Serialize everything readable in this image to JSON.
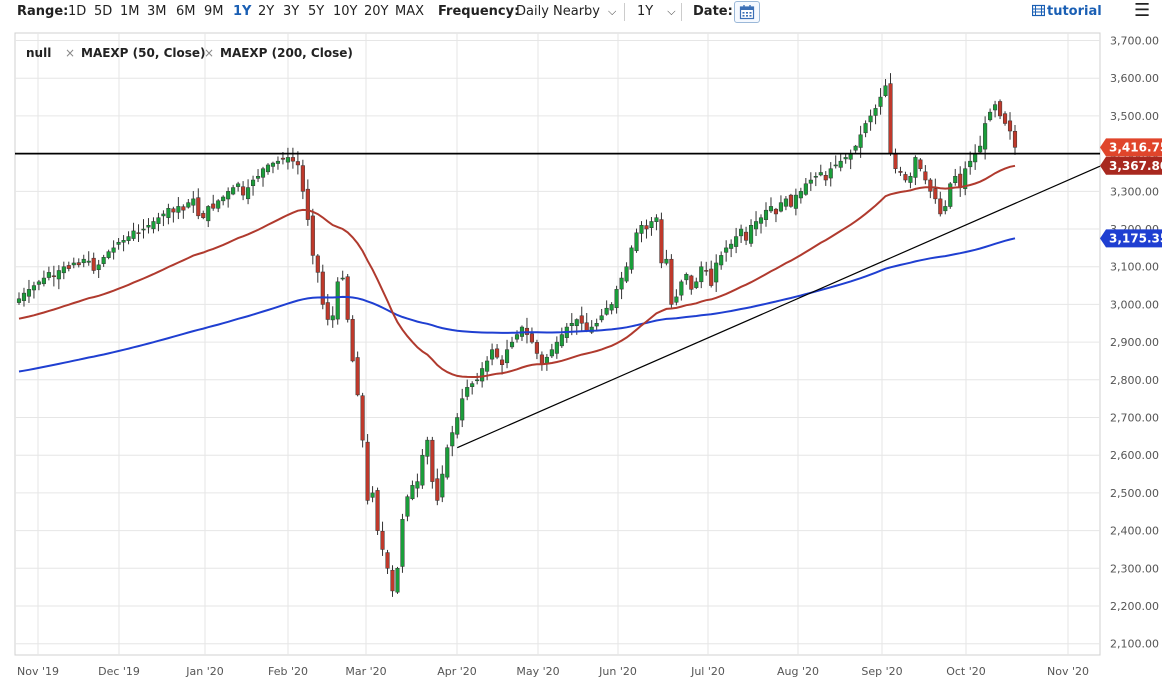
{
  "toolbar": {
    "range_label": "Range:",
    "ranges": [
      "1D",
      "5D",
      "1M",
      "3M",
      "6M",
      "9M",
      "1Y",
      "2Y",
      "3Y",
      "5Y",
      "10Y",
      "20Y",
      "MAX"
    ],
    "active_range": "1Y",
    "frequency_label": "Frequency:",
    "frequency_value": "Daily Nearby",
    "period_value": "1Y",
    "date_label": "Date:",
    "tutorial_label": "tutorial",
    "icons": {
      "calendar": "calendar-icon",
      "tutorial": "tutorial-icon",
      "menu": "hamburger-menu-icon",
      "dropdown": "chevron-down-icon"
    }
  },
  "legend": {
    "items": [
      {
        "label": "null"
      },
      {
        "label": "MAEXP (50, Close)"
      },
      {
        "label": "MAEXP (200, Close)"
      }
    ]
  },
  "chart_data": {
    "type": "candlestick",
    "x_tick_labels": [
      "Nov '19",
      "Dec '19",
      "Jan '20",
      "Feb '20",
      "Mar '20",
      "Apr '20",
      "May '20",
      "Jun '20",
      "Jul '20",
      "Aug '20",
      "Sep '20",
      "Oct '20",
      "Nov '20"
    ],
    "y_tick_labels": [
      "2,100.00",
      "2,200.00",
      "2,300.00",
      "2,400.00",
      "2,500.00",
      "2,600.00",
      "2,700.00",
      "2,800.00",
      "2,900.00",
      "3,000.00",
      "3,100.00",
      "3,200.00",
      "3,300.00",
      "3,400.00",
      "3,500.00",
      "3,600.00",
      "3,700.00"
    ],
    "ylim": [
      2070,
      3720
    ],
    "grid": true,
    "legend_position": "top-left",
    "colors": {
      "up": "#1a9e3a",
      "down": "#c0392b",
      "ma50": "#b03a2e",
      "ma200": "#1f3fd1",
      "horizontal_line": "#000000",
      "trendline": "#000000"
    },
    "closes": [
      3015,
      3030,
      3040,
      3050,
      3060,
      3070,
      3085,
      3075,
      3090,
      3100,
      3095,
      3110,
      3105,
      3120,
      3115,
      3090,
      3105,
      3125,
      3140,
      3150,
      3165,
      3170,
      3180,
      3195,
      3190,
      3200,
      3210,
      3220,
      3230,
      3240,
      3255,
      3245,
      3260,
      3250,
      3270,
      3280,
      3235,
      3230,
      3260,
      3255,
      3275,
      3285,
      3300,
      3310,
      3320,
      3290,
      3310,
      3330,
      3340,
      3360,
      3370,
      3375,
      3380,
      3385,
      3390,
      3380,
      3370,
      3300,
      3225,
      3130,
      3085,
      3000,
      2960,
      2970,
      3060,
      3070,
      2960,
      2850,
      2760,
      2640,
      2480,
      2500,
      2400,
      2350,
      2300,
      2240,
      2300,
      2430,
      2490,
      2520,
      2530,
      2600,
      2640,
      2530,
      2480,
      2550,
      2620,
      2660,
      2700,
      2750,
      2780,
      2790,
      2800,
      2830,
      2850,
      2880,
      2860,
      2840,
      2880,
      2900,
      2920,
      2940,
      2920,
      2900,
      2870,
      2840,
      2860,
      2880,
      2900,
      2920,
      2940,
      2950,
      2960,
      2950,
      2930,
      2940,
      2950,
      2970,
      2990,
      3000,
      3040,
      3070,
      3100,
      3150,
      3190,
      3210,
      3200,
      3220,
      3230,
      3110,
      3120,
      3000,
      3020,
      3060,
      3080,
      3040,
      3060,
      3100,
      3090,
      3050,
      3110,
      3130,
      3150,
      3160,
      3180,
      3200,
      3170,
      3210,
      3220,
      3230,
      3250,
      3260,
      3240,
      3270,
      3280,
      3260,
      3290,
      3300,
      3320,
      3330,
      3340,
      3350,
      3330,
      3360,
      3370,
      3380,
      3390,
      3400,
      3420,
      3450,
      3480,
      3500,
      3520,
      3550,
      3580,
      3400,
      3360,
      3350,
      3330,
      3340,
      3390,
      3360,
      3330,
      3300,
      3280,
      3240,
      3260,
      3320,
      3340,
      3310,
      3360,
      3380,
      3400,
      3420,
      3480,
      3510,
      3530,
      3500,
      3480,
      3460,
      3416.75
    ],
    "ma50": {
      "current": 3367.8
    },
    "ma200": {
      "current": 3175.35
    },
    "horizontal_line_value": 3400,
    "price_tags": [
      "3,416.75",
      "3,367.80",
      "3,175.35"
    ]
  }
}
